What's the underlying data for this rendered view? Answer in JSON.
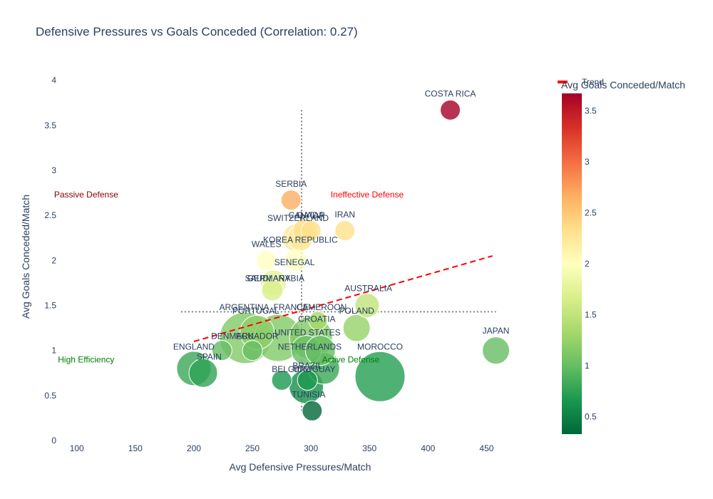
{
  "chart_data": {
    "type": "scatter",
    "title": "Defensive Pressures vs Goals Conceded (Correlation: 0.27)",
    "xlabel": "Avg Defensive Pressures/Match",
    "ylabel": "Avg Goals Conceded/Match",
    "xlim": [
      88,
      468
    ],
    "ylim": [
      0,
      4.1
    ],
    "x_ticks": [
      "100",
      "150",
      "200",
      "250",
      "300",
      "350",
      "400",
      "450"
    ],
    "x_tick_values": [
      100,
      150,
      200,
      250,
      300,
      350,
      400,
      450
    ],
    "y_ticks": [
      "0",
      "0.5",
      "1",
      "1.5",
      "2",
      "2.5",
      "3",
      "3.5",
      "4"
    ],
    "y_tick_values": [
      0,
      0.5,
      1,
      1.5,
      2,
      2.5,
      3,
      3.5,
      4
    ],
    "colorbar": {
      "title": "Avg Goals Conceded/Match",
      "range": [
        0.33,
        3.67
      ],
      "ticks": [
        "0.5",
        "1",
        "1.5",
        "2",
        "2.5",
        "3",
        "3.5"
      ],
      "tick_values": [
        0.5,
        1,
        1.5,
        2,
        2.5,
        3,
        3.5
      ],
      "colorscale": [
        "#006837",
        "#1a9850",
        "#66bd63",
        "#a6d96a",
        "#d9ef8b",
        "#ffffbf",
        "#fee08b",
        "#fdae61",
        "#f46d43",
        "#d73027",
        "#a50026"
      ]
    },
    "legend": {
      "entries": [
        "Trend"
      ],
      "color": "#ff0000",
      "position": "top-right"
    },
    "trend_line": {
      "x": [
        200,
        455
      ],
      "y": [
        1.1,
        2.05
      ],
      "color": "#ff0000",
      "style": "dashed"
    },
    "reference_lines": {
      "x_median": 292,
      "y_median": 1.43,
      "color": "#808080",
      "style": "dotted"
    },
    "quadrant_labels": [
      {
        "text": "Passive Defense",
        "x": 108,
        "y": 2.73,
        "color": "#8b0000"
      },
      {
        "text": "Ineffective Defense",
        "x": 348,
        "y": 2.73,
        "color": "#ff0000"
      },
      {
        "text": "High Efficiency",
        "x": 108,
        "y": 0.9,
        "color": "#008000"
      },
      {
        "text": "Active Defense",
        "x": 334,
        "y": 0.9,
        "color": "#008000"
      }
    ],
    "points": [
      {
        "name": "COSTA RICA",
        "x": 419,
        "y": 3.67,
        "size": 14
      },
      {
        "name": "SERBIA",
        "x": 283,
        "y": 2.67,
        "size": 14
      },
      {
        "name": "IRAN",
        "x": 329,
        "y": 2.33,
        "size": 14
      },
      {
        "name": "CANADA",
        "x": 295,
        "y": 2.33,
        "size": 17
      },
      {
        "name": "QATAR",
        "x": 300,
        "y": 2.33,
        "size": 14
      },
      {
        "name": "SWITZERLAND",
        "x": 288,
        "y": 2.25,
        "size": 20
      },
      {
        "name": "KOREA REPUBLIC",
        "x": 291,
        "y": 2.25,
        "size": 18
      },
      {
        "name": "WALES",
        "x": 262,
        "y": 2.0,
        "size": 14
      },
      {
        "name": "SENEGAL",
        "x": 287,
        "y": 2.0,
        "size": 15
      },
      {
        "name": "SAUDI ARABIA",
        "x": 267,
        "y": 1.67,
        "size": 15
      },
      {
        "name": "GERMANY",
        "x": 268,
        "y": 1.75,
        "size": 18
      },
      {
        "name": "AUSTRALIA",
        "x": 348,
        "y": 1.5,
        "size": 17
      },
      {
        "name": "ARGENTINA",
        "x": 244,
        "y": 1.14,
        "size": 36
      },
      {
        "name": "FRANCE",
        "x": 272,
        "y": 1.14,
        "size": 33
      },
      {
        "name": "PORTUGAL",
        "x": 254,
        "y": 1.2,
        "size": 24
      },
      {
        "name": "CAMEROON",
        "x": 306,
        "y": 1.33,
        "size": 13
      },
      {
        "name": "POLAND",
        "x": 339,
        "y": 1.25,
        "size": 19
      },
      {
        "name": "CROATIA",
        "x": 300,
        "y": 1.14,
        "size": 30
      },
      {
        "name": "DENMARK",
        "x": 224,
        "y": 1.0,
        "size": 14
      },
      {
        "name": "ECUADOR",
        "x": 250,
        "y": 1.0,
        "size": 14
      },
      {
        "name": "UNITED STATES",
        "x": 296,
        "y": 1.0,
        "size": 21
      },
      {
        "name": "NETHERLANDS",
        "x": 308,
        "y": 1.0,
        "size": 21
      },
      {
        "name": "MOROCCO",
        "x": 359,
        "y": 0.71,
        "size": 35
      },
      {
        "name": "JAPAN",
        "x": 458,
        "y": 1.0,
        "size": 19
      },
      {
        "name": "ENGLAND",
        "x": 200,
        "y": 0.8,
        "size": 24
      },
      {
        "name": "SPAIN",
        "x": 208,
        "y": 0.75,
        "size": 20
      },
      {
        "name": "BRAZIL",
        "x": 311,
        "y": 0.8,
        "size": 22
      },
      {
        "name": "URUGUAY",
        "x": 297,
        "y": 0.67,
        "size": 14
      },
      {
        "name": "BELGIUM",
        "x": 275,
        "y": 0.67,
        "size": 14
      },
      {
        "name": "TUNISIA",
        "x": 296,
        "y": 0.6,
        "size": 24
      },
      {
        "name": "TUNISIA_OVERLAP_HIDDEN",
        "x": 301,
        "y": 0.33,
        "size": 14
      }
    ],
    "visible_labels": [
      {
        "text": "COSTA RICA",
        "x": 419,
        "y": 3.85
      },
      {
        "text": "SERBIA",
        "x": 283,
        "y": 2.85
      },
      {
        "text": "IRAN",
        "x": 329,
        "y": 2.51
      },
      {
        "text": "CANADA",
        "x": 296,
        "y": 2.5
      },
      {
        "text": "QATAR",
        "x": 300,
        "y": 2.5
      },
      {
        "text": "SWITZERLAND",
        "x": 289,
        "y": 2.47
      },
      {
        "text": "KOREA REPUBLIC",
        "x": 291,
        "y": 2.23
      },
      {
        "text": "WALES",
        "x": 262,
        "y": 2.18
      },
      {
        "text": "SENEGAL",
        "x": 286,
        "y": 1.98
      },
      {
        "text": "SAUDI ARABIA",
        "x": 269,
        "y": 1.8
      },
      {
        "text": "GERMANY",
        "x": 264,
        "y": 1.8
      },
      {
        "text": "AUSTRALIA",
        "x": 349,
        "y": 1.69
      },
      {
        "text": "ARGENTINA",
        "x": 243,
        "y": 1.48
      },
      {
        "text": "FRANCE",
        "x": 283,
        "y": 1.48
      },
      {
        "text": "PORTUGAL",
        "x": 253,
        "y": 1.44
      },
      {
        "text": "CAMEROON",
        "x": 309,
        "y": 1.48
      },
      {
        "text": "POLAND",
        "x": 339,
        "y": 1.44
      },
      {
        "text": "CROATIA",
        "x": 305,
        "y": 1.35
      },
      {
        "text": "UNITED STATES",
        "x": 297,
        "y": 1.2
      },
      {
        "text": "DENMARK",
        "x": 233,
        "y": 1.16
      },
      {
        "text": "ECUADOR",
        "x": 254,
        "y": 1.16
      },
      {
        "text": "NETHERLANDS",
        "x": 299,
        "y": 1.04
      },
      {
        "text": "MOROCCO",
        "x": 359,
        "y": 1.04
      },
      {
        "text": "JAPAN",
        "x": 458,
        "y": 1.22
      },
      {
        "text": "ENGLAND",
        "x": 200,
        "y": 1.04
      },
      {
        "text": "SPAIN",
        "x": 213,
        "y": 0.93
      },
      {
        "text": "BRAZIL",
        "x": 297,
        "y": 0.83
      },
      {
        "text": "BELGIUM",
        "x": 283,
        "y": 0.79
      },
      {
        "text": "URUGUAY",
        "x": 303,
        "y": 0.79
      },
      {
        "text": "TUNISIA",
        "x": 298,
        "y": 0.51
      }
    ]
  }
}
